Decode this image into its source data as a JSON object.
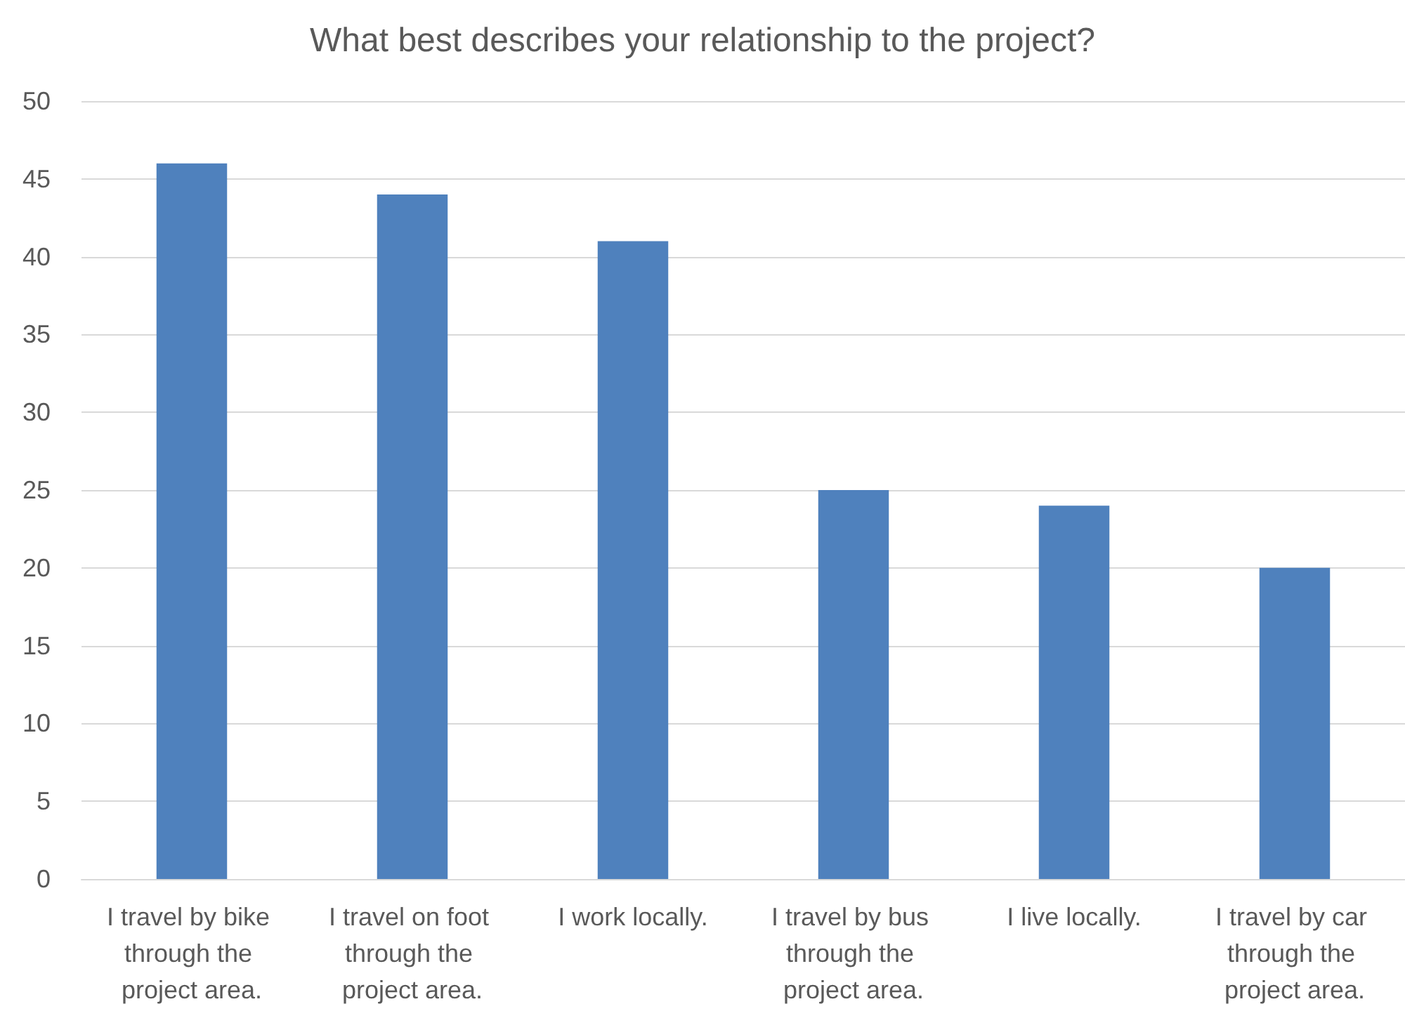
{
  "chart_data": {
    "type": "bar",
    "title": "What best describes your relationship to the project?",
    "categories": [
      "I travel by bike through the project area.",
      "I travel on foot through the project area.",
      "I work locally.",
      "I travel by bus through the project area.",
      "I live locally.",
      "I travel by car through the project area."
    ],
    "values": [
      46,
      44,
      41,
      25,
      24,
      20
    ],
    "color": "#4f81bd",
    "ylim": [
      0,
      50
    ],
    "yticks": [
      0,
      5,
      10,
      15,
      20,
      25,
      30,
      35,
      40,
      45,
      50
    ],
    "grid": "y"
  }
}
